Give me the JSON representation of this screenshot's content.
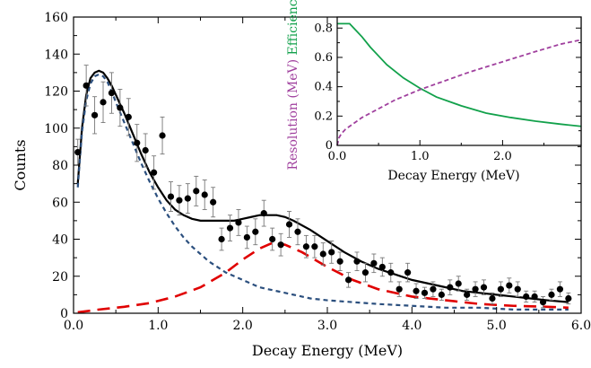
{
  "chart_data": [
    {
      "type": "scatter",
      "title": "",
      "xlabel": "Decay Energy (MeV)",
      "ylabel": "Counts",
      "xlim": [
        0,
        6
      ],
      "ylim": [
        0,
        160
      ],
      "x_ticks": [
        "0.0",
        "1.0",
        "2.0",
        "3.0",
        "4.0",
        "5.0",
        "6.0"
      ],
      "y_ticks": [
        "0",
        "20",
        "40",
        "60",
        "80",
        "100",
        "120",
        "140",
        "160"
      ],
      "data_points": {
        "x": [
          0.05,
          0.15,
          0.25,
          0.35,
          0.45,
          0.55,
          0.65,
          0.75,
          0.85,
          0.95,
          1.05,
          1.15,
          1.25,
          1.35,
          1.45,
          1.55,
          1.65,
          1.75,
          1.85,
          1.95,
          2.05,
          2.15,
          2.25,
          2.35,
          2.45,
          2.55,
          2.65,
          2.75,
          2.85,
          2.95,
          3.05,
          3.15,
          3.25,
          3.35,
          3.45,
          3.55,
          3.65,
          3.75,
          3.85,
          3.95,
          4.05,
          4.15,
          4.25,
          4.35,
          4.45,
          4.55,
          4.65,
          4.75,
          4.85,
          4.95,
          5.05,
          5.15,
          5.25,
          5.35,
          5.45,
          5.55,
          5.65,
          5.75,
          5.85
        ],
        "y": [
          87,
          123,
          107,
          114,
          119,
          111,
          106,
          92,
          88,
          76,
          96,
          63,
          61,
          62,
          66,
          64,
          60,
          40,
          46,
          49,
          41,
          44,
          54,
          40,
          37,
          48,
          44,
          36,
          36,
          32,
          33,
          28,
          18,
          28,
          22,
          27,
          25,
          22,
          13,
          22,
          12,
          11,
          13,
          10,
          14,
          16,
          10,
          13,
          14,
          8,
          13,
          15,
          13,
          9,
          9,
          6,
          10,
          13,
          8
        ],
        "y_err": [
          7,
          11,
          10,
          11,
          11,
          10,
          10,
          10,
          9,
          9,
          10,
          8,
          8,
          8,
          8,
          8,
          8,
          6,
          7,
          7,
          6,
          7,
          7,
          6,
          6,
          7,
          7,
          6,
          6,
          6,
          6,
          5,
          4,
          5,
          5,
          5,
          5,
          5,
          4,
          5,
          4,
          3,
          4,
          3,
          4,
          4,
          3,
          4,
          4,
          3,
          4,
          4,
          4,
          3,
          3,
          3,
          3,
          4,
          3
        ]
      },
      "series": [
        {
          "name": "",
          "style": "solid",
          "color": "#000000",
          "x": [
            0.05,
            0.1,
            0.15,
            0.2,
            0.25,
            0.3,
            0.35,
            0.4,
            0.45,
            0.5,
            0.6,
            0.7,
            0.8,
            0.9,
            1.0,
            1.1,
            1.2,
            1.3,
            1.4,
            1.5,
            1.6,
            1.7,
            1.8,
            1.9,
            2.0,
            2.1,
            2.2,
            2.3,
            2.4,
            2.5,
            2.6,
            2.8,
            3.0,
            3.2,
            3.4,
            3.6,
            3.8,
            4.0,
            4.2,
            4.4,
            4.6,
            4.8,
            5.0,
            5.2,
            5.4,
            5.6,
            5.85
          ],
          "y": [
            70,
            100,
            118,
            127,
            130,
            131,
            130,
            127,
            123,
            118,
            108,
            97,
            86,
            76,
            68,
            61,
            56,
            53,
            51,
            50,
            50,
            50,
            50,
            50,
            51,
            52,
            53,
            53,
            53,
            52,
            50,
            45,
            39,
            33,
            28,
            24,
            21,
            18,
            16,
            14,
            12,
            11,
            10,
            9,
            8,
            7,
            6
          ]
        },
        {
          "name": "",
          "style": "dotted",
          "color": "#2b4f7e",
          "x": [
            0.05,
            0.1,
            0.15,
            0.2,
            0.25,
            0.3,
            0.35,
            0.4,
            0.45,
            0.5,
            0.6,
            0.7,
            0.8,
            0.9,
            1.0,
            1.1,
            1.2,
            1.3,
            1.4,
            1.5,
            1.6,
            1.8,
            2.0,
            2.2,
            2.4,
            2.6,
            2.8,
            3.0,
            3.3,
            3.6,
            4.0,
            4.4,
            4.8,
            5.2,
            5.6,
            5.85
          ],
          "y": [
            68,
            98,
            115,
            124,
            128,
            129,
            128,
            125,
            120,
            114,
            103,
            92,
            81,
            71,
            62,
            54,
            47,
            41,
            36,
            32,
            28,
            22,
            18,
            14,
            12,
            10,
            8,
            7,
            6,
            5,
            4,
            3,
            3,
            2,
            2,
            2
          ]
        },
        {
          "name": "",
          "style": "dashed",
          "color": "#e00000",
          "x": [
            0.05,
            0.3,
            0.6,
            0.9,
            1.2,
            1.5,
            1.8,
            2.0,
            2.2,
            2.35,
            2.5,
            2.7,
            3.0,
            3.3,
            3.6,
            4.0,
            4.4,
            4.8,
            5.2,
            5.6,
            5.85
          ],
          "y": [
            0.5,
            2,
            3.5,
            5.5,
            9,
            14,
            22,
            29,
            35,
            38,
            37,
            33,
            25,
            18,
            13,
            9,
            7,
            5,
            4,
            3.5,
            3
          ]
        }
      ]
    },
    {
      "type": "line",
      "title": "",
      "xlabel": "Decay Energy (MeV)",
      "ylabel_parts": [
        {
          "text": "Resolution (MeV)",
          "color": "#a0409e"
        },
        {
          "text": "Efficiency",
          "color": "#12a14b"
        }
      ],
      "xlim": [
        0,
        2.95
      ],
      "ylim": [
        0,
        0.875
      ],
      "x_ticks": [
        "0.0",
        "1.0",
        "2.0"
      ],
      "y_ticks": [
        "0",
        "0.2",
        "0.4",
        "0.6",
        "0.8"
      ],
      "series": [
        {
          "name": "Efficiency",
          "color": "#12a14b",
          "style": "solid",
          "x": [
            0,
            0.1,
            0.15,
            0.2,
            0.3,
            0.4,
            0.5,
            0.6,
            0.8,
            1.0,
            1.2,
            1.5,
            1.8,
            2.1,
            2.4,
            2.7,
            2.95
          ],
          "y": [
            0.83,
            0.83,
            0.83,
            0.8,
            0.74,
            0.67,
            0.61,
            0.55,
            0.46,
            0.39,
            0.33,
            0.27,
            0.22,
            0.19,
            0.165,
            0.145,
            0.13
          ]
        },
        {
          "name": "Resolution (MeV)",
          "color": "#a0409e",
          "style": "dashed",
          "x": [
            0,
            0.02,
            0.05,
            0.1,
            0.2,
            0.3,
            0.5,
            0.7,
            1.0,
            1.3,
            1.6,
            2.0,
            2.4,
            2.7,
            2.95
          ],
          "y": [
            0,
            0.05,
            0.08,
            0.11,
            0.15,
            0.19,
            0.25,
            0.31,
            0.38,
            0.44,
            0.5,
            0.57,
            0.64,
            0.69,
            0.72
          ]
        }
      ]
    }
  ]
}
